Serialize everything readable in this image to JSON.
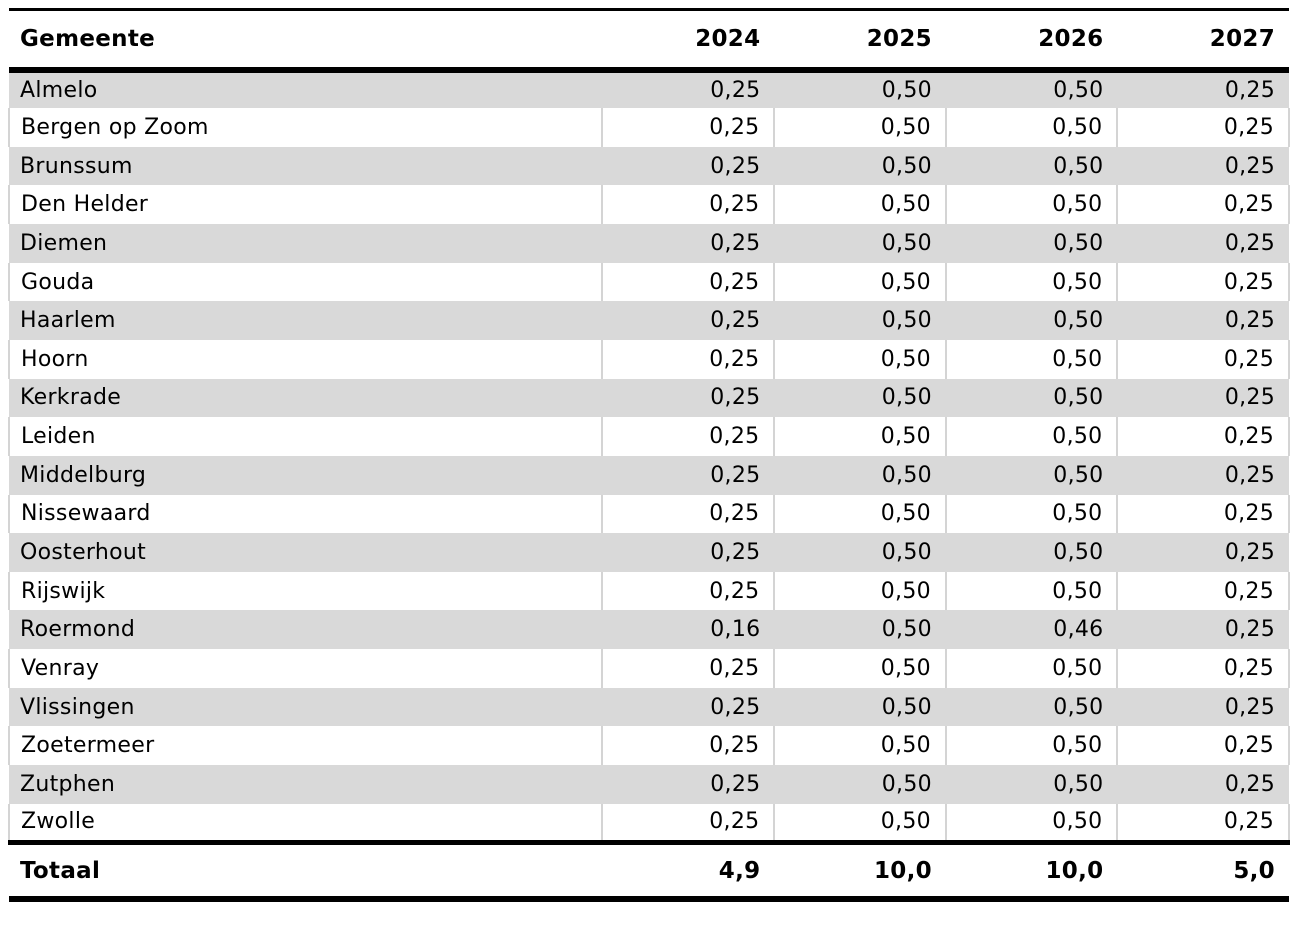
{
  "chart_data": {
    "type": "table",
    "title": "",
    "columns": [
      "Gemeente",
      "2024",
      "2025",
      "2026",
      "2027"
    ],
    "rows": [
      {
        "name": "Almelo",
        "values": [
          "0,25",
          "0,50",
          "0,50",
          "0,25"
        ]
      },
      {
        "name": "Bergen op Zoom",
        "values": [
          "0,25",
          "0,50",
          "0,50",
          "0,25"
        ]
      },
      {
        "name": "Brunssum",
        "values": [
          "0,25",
          "0,50",
          "0,50",
          "0,25"
        ]
      },
      {
        "name": "Den Helder",
        "values": [
          "0,25",
          "0,50",
          "0,50",
          "0,25"
        ]
      },
      {
        "name": "Diemen",
        "values": [
          "0,25",
          "0,50",
          "0,50",
          "0,25"
        ]
      },
      {
        "name": "Gouda",
        "values": [
          "0,25",
          "0,50",
          "0,50",
          "0,25"
        ]
      },
      {
        "name": "Haarlem",
        "values": [
          "0,25",
          "0,50",
          "0,50",
          "0,25"
        ]
      },
      {
        "name": "Hoorn",
        "values": [
          "0,25",
          "0,50",
          "0,50",
          "0,25"
        ]
      },
      {
        "name": "Kerkrade",
        "values": [
          "0,25",
          "0,50",
          "0,50",
          "0,25"
        ]
      },
      {
        "name": "Leiden",
        "values": [
          "0,25",
          "0,50",
          "0,50",
          "0,25"
        ]
      },
      {
        "name": "Middelburg",
        "values": [
          "0,25",
          "0,50",
          "0,50",
          "0,25"
        ]
      },
      {
        "name": "Nissewaard",
        "values": [
          "0,25",
          "0,50",
          "0,50",
          "0,25"
        ]
      },
      {
        "name": "Oosterhout",
        "values": [
          "0,25",
          "0,50",
          "0,50",
          "0,25"
        ]
      },
      {
        "name": "Rijswijk",
        "values": [
          "0,25",
          "0,50",
          "0,50",
          "0,25"
        ]
      },
      {
        "name": "Roermond",
        "values": [
          "0,16",
          "0,50",
          "0,46",
          "0,25"
        ]
      },
      {
        "name": "Venray",
        "values": [
          "0,25",
          "0,50",
          "0,50",
          "0,25"
        ]
      },
      {
        "name": "Vlissingen",
        "values": [
          "0,25",
          "0,50",
          "0,50",
          "0,25"
        ]
      },
      {
        "name": "Zoetermeer",
        "values": [
          "0,25",
          "0,50",
          "0,50",
          "0,25"
        ]
      },
      {
        "name": "Zutphen",
        "values": [
          "0,25",
          "0,50",
          "0,50",
          "0,25"
        ]
      },
      {
        "name": "Zwolle",
        "values": [
          "0,25",
          "0,50",
          "0,50",
          "0,25"
        ]
      }
    ],
    "total": {
      "label": "Totaal",
      "values": [
        "4,9",
        "10,0",
        "10,0",
        "5,0"
      ]
    },
    "layout": {
      "stripe_color": "#d9d9d9",
      "separator_color": "#d4d4d4",
      "rule_color": "#000000",
      "first_row_striped": true
    }
  }
}
